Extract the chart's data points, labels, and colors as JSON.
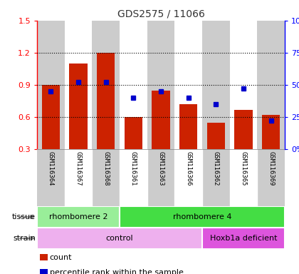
{
  "title": "GDS2575 / 11066",
  "samples": [
    "GSM116364",
    "GSM116367",
    "GSM116368",
    "GSM116361",
    "GSM116363",
    "GSM116366",
    "GSM116362",
    "GSM116365",
    "GSM116369"
  ],
  "counts": [
    0.9,
    1.1,
    1.2,
    0.6,
    0.85,
    0.72,
    0.55,
    0.67,
    0.62
  ],
  "percentile_ranks_pct": [
    45,
    52,
    52,
    40,
    45,
    40,
    35,
    47,
    22
  ],
  "ylim": [
    0.3,
    1.5
  ],
  "yticks_left": [
    0.3,
    0.6,
    0.9,
    1.2,
    1.5
  ],
  "yticks_right": [
    0,
    25,
    50,
    75,
    100
  ],
  "bar_color": "#cc2200",
  "dot_color": "#0000cc",
  "col_bg_even": "#cccccc",
  "col_bg_odd": "#ffffff",
  "tissue_groups": [
    {
      "label": "rhombomere 2",
      "start": 0,
      "end": 3,
      "color": "#99ee99"
    },
    {
      "label": "rhombomere 4",
      "start": 3,
      "end": 9,
      "color": "#44dd44"
    }
  ],
  "strain_groups": [
    {
      "label": "control",
      "start": 0,
      "end": 6,
      "color": "#eeb0ee"
    },
    {
      "label": "Hoxb1a deficient",
      "start": 6,
      "end": 9,
      "color": "#dd55dd"
    }
  ],
  "legend_count_label": "count",
  "legend_pct_label": "percentile rank within the sample",
  "tissue_label": "tissue",
  "strain_label": "strain",
  "title_color": "#333333"
}
